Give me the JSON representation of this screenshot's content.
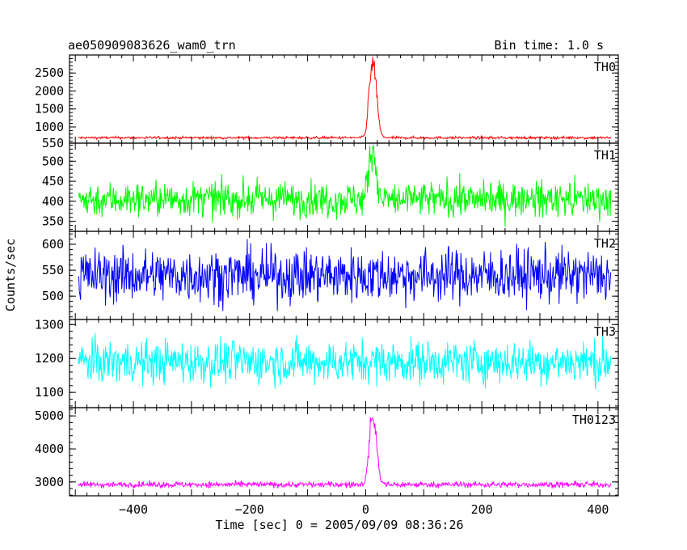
{
  "header": {
    "file_label": "ae050909083626_wam0_trn",
    "bin_label": "Bin time: 1.0 s"
  },
  "chart_data": {
    "type": "line",
    "title": "ae050909083626_wam0_trn",
    "subtitle": "Bin time: 1.0 s",
    "xlabel": "Time [sec] 0 = 2005/09/09 08:36:26",
    "ylabel": "Counts/sec",
    "xlim": [
      -510,
      435
    ],
    "x_range": [
      -495,
      422
    ],
    "x_ticks": [
      -400,
      -200,
      0,
      200,
      400
    ],
    "x_tick_labels": [
      "−400",
      "−200",
      "0",
      "200",
      "400"
    ],
    "grid": false,
    "panels": [
      {
        "name": "TH0",
        "color": "#ff0000",
        "ylim": [
          550,
          3000
        ],
        "y_ticks": [
          550,
          1000,
          1500,
          2000,
          2500
        ],
        "y_tick_labels": [
          "550",
          "1000",
          "1500",
          "2000",
          "2500"
        ],
        "baseline": 700,
        "noise": 18,
        "peak_x": 13,
        "peak_y": 3000,
        "peak_width": 6
      },
      {
        "name": "TH1",
        "color": "#00ff00",
        "ylim": [
          325,
          545
        ],
        "y_ticks": [
          350,
          400,
          450,
          500
        ],
        "y_tick_labels": [
          "350",
          "400",
          "450",
          "500"
        ],
        "baseline": 405,
        "noise": 22,
        "peak_x": 12,
        "peak_y": 545,
        "peak_width": 6
      },
      {
        "name": "TH2",
        "color": "#0000ff",
        "ylim": [
          455,
          625
        ],
        "y_ticks": [
          500,
          550,
          600
        ],
        "y_tick_labels": [
          "500",
          "550",
          "600"
        ],
        "baseline": 540,
        "noise": 26,
        "peak_x": null,
        "peak_y": null,
        "peak_width": 0
      },
      {
        "name": "TH3",
        "color": "#00ffff",
        "ylim": [
          1055,
          1315
        ],
        "y_ticks": [
          1100,
          1200,
          1300
        ],
        "y_tick_labels": [
          "1100",
          "1200",
          "1300"
        ],
        "baseline": 1190,
        "noise": 32,
        "peak_x": null,
        "peak_y": null,
        "peak_width": 0
      },
      {
        "name": "TH0123",
        "color": "#ff00ff",
        "ylim": [
          2580,
          5250
        ],
        "y_ticks": [
          3000,
          4000,
          5000
        ],
        "y_tick_labels": [
          "3000",
          "4000",
          "5000"
        ],
        "baseline": 2920,
        "noise": 45,
        "peak_x": 13,
        "peak_y": 5250,
        "peak_width": 6
      }
    ]
  }
}
